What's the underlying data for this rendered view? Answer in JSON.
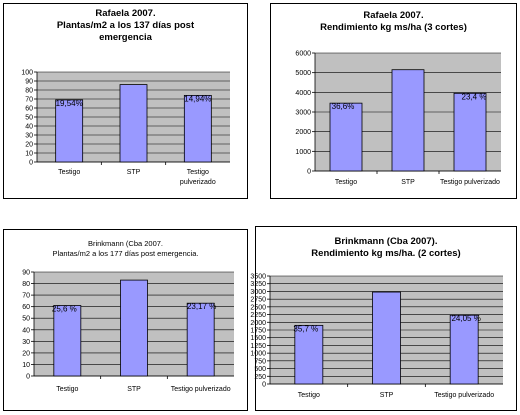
{
  "colors": {
    "bar": "#9999ff",
    "bar_border": "#000000",
    "plot_bg": "#c0c0c0",
    "grid": "#000000"
  },
  "chart_data": [
    {
      "type": "bar",
      "title": [
        "Rafaela 2007.",
        "Plantas/m2 a los 137 días post",
        "emergencia"
      ],
      "categories": [
        "Testigo",
        "STP",
        "Testigo\npulverizado"
      ],
      "values": [
        69,
        86,
        74
      ],
      "labels": [
        "19,54%",
        "",
        "14,94%"
      ],
      "yticks": [
        0,
        10,
        20,
        30,
        40,
        50,
        60,
        70,
        80,
        90,
        100
      ],
      "ylim": [
        0,
        100
      ],
      "grid": true
    },
    {
      "type": "bar",
      "title": [
        "Rafaela 2007.",
        "Rendimiento kg ms/ha (3 cortes)"
      ],
      "categories": [
        "Testigo",
        "STP",
        "Testigo pulverizado"
      ],
      "values": [
        3450,
        5150,
        3950
      ],
      "labels": [
        "36,6%",
        "",
        "23,4 %"
      ],
      "yticks": [
        0,
        1000,
        2000,
        3000,
        4000,
        5000,
        6000
      ],
      "ylim": [
        0,
        6000
      ],
      "grid": true
    },
    {
      "type": "bar",
      "title": [
        "Brinkmann (Cba 2007.",
        "Plantas/m2 a los 177 días post emergencia."
      ],
      "categories": [
        "Testigo",
        "STP",
        "Testigo pulverizado"
      ],
      "values": [
        61,
        83,
        63
      ],
      "labels": [
        "25,6 %",
        "",
        "23,17 %"
      ],
      "yticks": [
        0,
        10,
        20,
        30,
        40,
        50,
        60,
        70,
        80,
        90
      ],
      "ylim": [
        0,
        90
      ],
      "grid": true
    },
    {
      "type": "bar",
      "title": [
        "Brinkmann (Cba 2007).",
        "Rendimiento kg ms/ha. (2 cortes)"
      ],
      "categories": [
        "Testigo",
        "STP",
        "Testigo pulverizado"
      ],
      "values": [
        1900,
        2980,
        2230
      ],
      "labels": [
        "35,7 %",
        "",
        "24,05 %"
      ],
      "yticks": [
        0,
        250,
        500,
        750,
        1000,
        1250,
        1500,
        1750,
        2000,
        2250,
        2500,
        2750,
        3000,
        3250,
        3500
      ],
      "ylim": [
        0,
        3500
      ],
      "grid": true
    }
  ]
}
